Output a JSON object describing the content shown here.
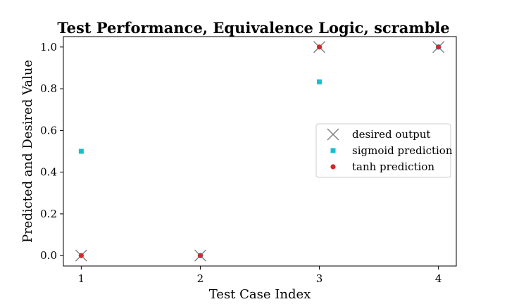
{
  "chart_data": {
    "type": "scatter",
    "title": "Test Performance, Equivalence Logic, scramble",
    "xlabel": "Test Case Index",
    "ylabel": "Predicted and Desired Value",
    "x": [
      1,
      2,
      3,
      4
    ],
    "xticks": [
      "1",
      "2",
      "3",
      "4"
    ],
    "yticks": [
      "0.0",
      "0.2",
      "0.4",
      "0.6",
      "0.8",
      "1.0"
    ],
    "xlim": [
      0.85,
      4.15
    ],
    "ylim": [
      -0.05,
      1.05
    ],
    "grid": false,
    "legend_position": "center-right",
    "series": [
      {
        "name": "desired output",
        "marker": "x",
        "color": "#7f7f7f",
        "values": [
          0,
          0,
          1,
          1
        ]
      },
      {
        "name": "sigmoid prediction",
        "marker": "square",
        "color": "#17becf",
        "values": [
          0.5,
          0,
          0.833,
          1
        ]
      },
      {
        "name": "tanh prediction",
        "marker": "circle",
        "color": "#d62728",
        "values": [
          0,
          0,
          1,
          1
        ]
      }
    ]
  }
}
